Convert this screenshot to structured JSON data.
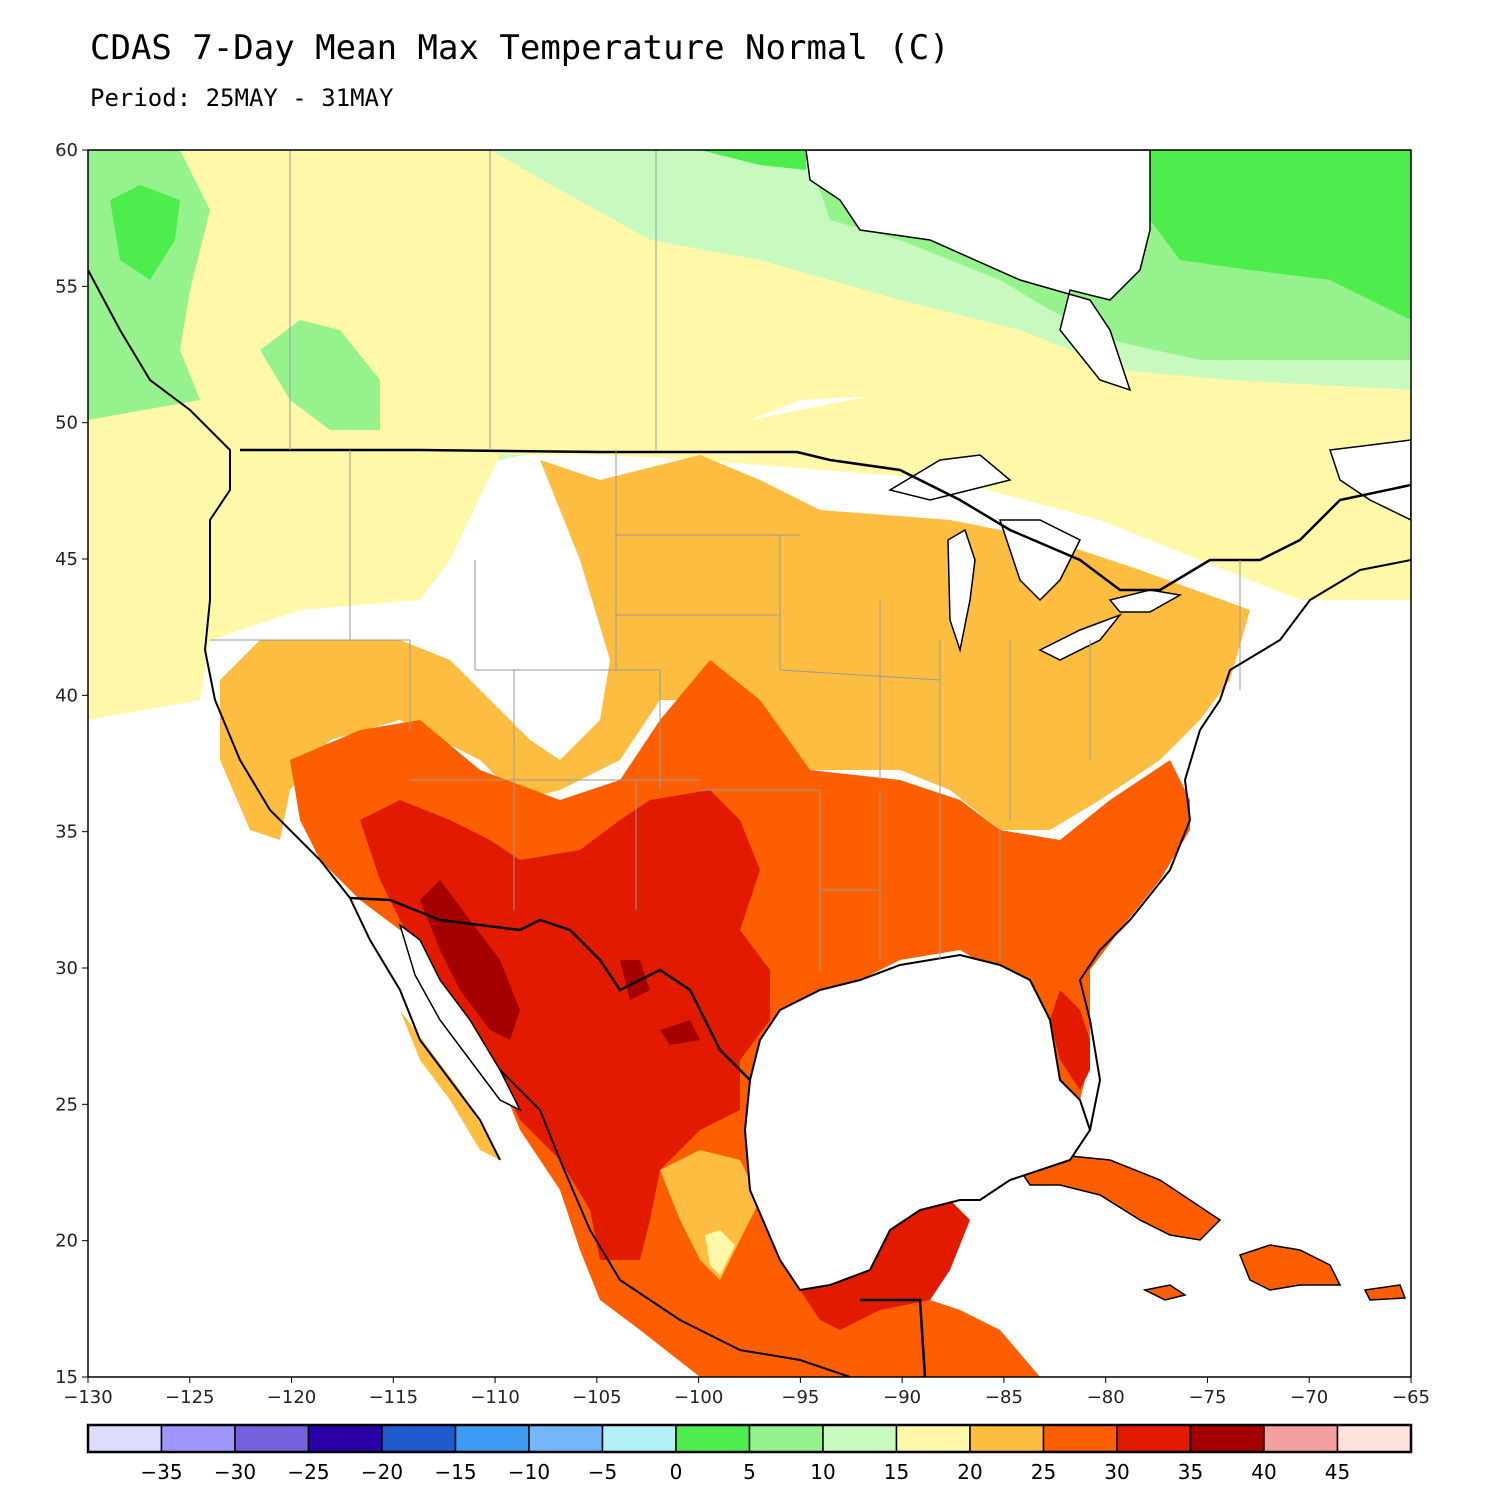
{
  "header": {
    "title": "CDAS 7-Day Mean Max Temperature Normal (C)",
    "period": "Period: 25MAY - 31MAY"
  },
  "map": {
    "lat_range": [
      15,
      60
    ],
    "lon_range": [
      -130,
      -65
    ],
    "lat_ticks": [
      "60",
      "55",
      "50",
      "45",
      "40",
      "35",
      "30",
      "25",
      "20",
      "15"
    ],
    "lon_ticks": [
      "−130",
      "−125",
      "−120",
      "−115",
      "−110",
      "−105",
      "−100",
      "−95",
      "−90",
      "−85",
      "−80",
      "−75",
      "−70",
      "−65"
    ],
    "region": "North America (contiguous US, southern Canada, Mexico, Caribbean)"
  },
  "colorbar": {
    "colors": [
      "#dcdcff",
      "#a096ff",
      "#7361dd",
      "#2a00a7",
      "#1e5bcf",
      "#3e9bf4",
      "#74b6fb",
      "#b4f0fa",
      "#4ded4d",
      "#96f28d",
      "#c8fac0",
      "#fff8a8",
      "#fcbd40",
      "#fd5f00",
      "#e11a00",
      "#a50000",
      "#f5a0a0",
      "#ffe2de"
    ],
    "labels": [
      "−35",
      "−30",
      "−25",
      "−20",
      "−15",
      "−10",
      "−5",
      "0",
      "5",
      "10",
      "15",
      "20",
      "25",
      "30",
      "35",
      "40",
      "45"
    ]
  }
}
